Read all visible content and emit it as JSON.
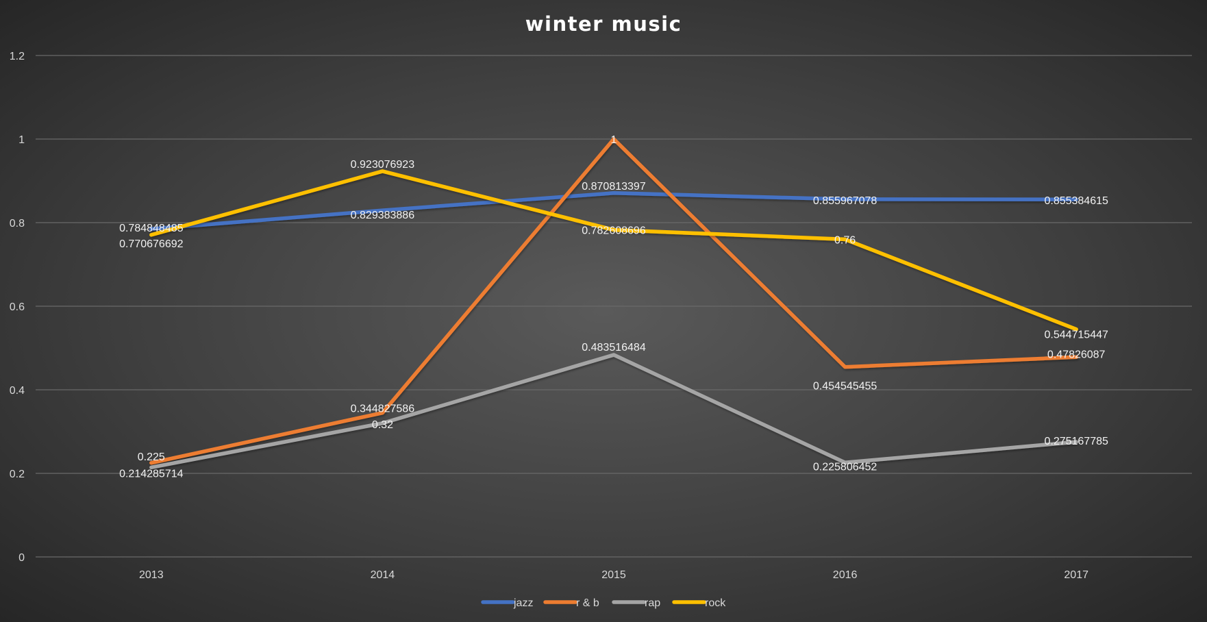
{
  "chart_data": {
    "type": "line",
    "title": "winter music",
    "xlabel": "",
    "ylabel": "",
    "categories": [
      "2013",
      "2014",
      "2015",
      "2016",
      "2017"
    ],
    "ylim": [
      0,
      1.2
    ],
    "y_ticks": [
      "0",
      "0.2",
      "0.4",
      "0.6",
      "0.8",
      "1",
      "1.2"
    ],
    "grid": true,
    "legend_position": "bottom",
    "series": [
      {
        "name": "jazz",
        "color": "#4472C4",
        "values": [
          0.784848485,
          0.829383886,
          0.870813397,
          0.855967078,
          0.855384615
        ],
        "labels": [
          "0.784848485",
          "0.829383886",
          "0.870813397",
          "0.855967078",
          "0.855384615"
        ]
      },
      {
        "name": "r & b",
        "color": "#ED7D31",
        "values": [
          0.225,
          0.344827586,
          1,
          0.454545455,
          0.47826087
        ],
        "labels": [
          "0.225",
          "0.344827586",
          "1",
          "0.454545455",
          "0.47826087"
        ]
      },
      {
        "name": "rap",
        "color": "#A5A5A5",
        "values": [
          0.214285714,
          0.32,
          0.483516484,
          0.225806452,
          0.275167785
        ],
        "labels": [
          "0.214285714",
          "0.32",
          "0.483516484",
          "0.225806452",
          "0.275167785"
        ]
      },
      {
        "name": "rock",
        "color": "#FFC000",
        "values": [
          0.770676692,
          0.923076923,
          0.782608696,
          0.76,
          0.544715447
        ],
        "labels": [
          "0.770676692",
          "0.923076923",
          "0.782608696",
          "0.76",
          "0.544715447"
        ]
      }
    ]
  }
}
